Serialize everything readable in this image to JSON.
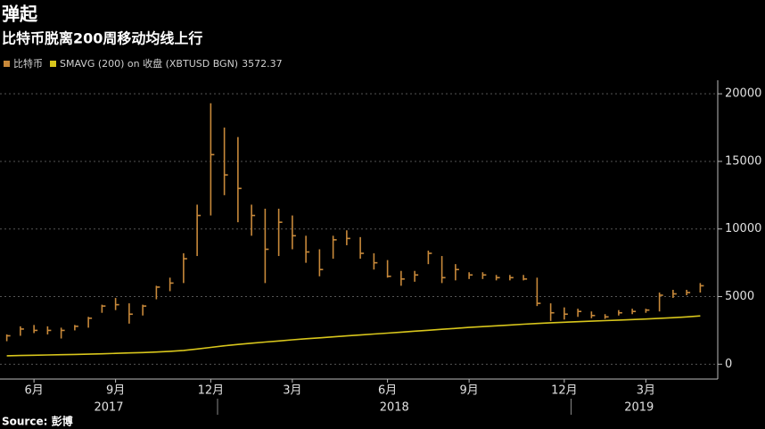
{
  "chart_data": {
    "type": "ohlc",
    "title": "弹起",
    "subtitle": "比特币脱离200周移动均线上行",
    "source": "Source: 彭博",
    "categories": [
      null,
      null,
      "6月",
      null,
      null,
      null,
      null,
      null,
      "9月",
      null,
      null,
      null,
      null,
      null,
      null,
      "12月",
      null,
      null,
      null,
      null,
      null,
      "3月",
      null,
      null,
      null,
      null,
      null,
      null,
      "6月",
      null,
      null,
      null,
      null,
      null,
      "9月",
      null,
      null,
      null,
      null,
      null,
      null,
      "12月",
      null,
      null,
      null,
      null,
      null,
      "3月",
      null,
      null,
      null,
      null
    ],
    "x_groups": [
      {
        "label": "2017",
        "start": 0,
        "end": 15
      },
      {
        "label": "2018",
        "start": 16,
        "end": 41
      },
      {
        "label": "2019",
        "start": 42,
        "end": 51
      }
    ],
    "ylim": [
      -1100,
      21000
    ],
    "yticks": [
      0,
      5000,
      10000,
      15000,
      20000
    ],
    "grid": true,
    "series": [
      {
        "name": "比特币",
        "type": "ohlc",
        "color": "#c8893a",
        "high": [
          2200,
          2800,
          2900,
          2800,
          2700,
          2900,
          3500,
          4400,
          4900,
          4500,
          4400,
          5800,
          6400,
          8200,
          11800,
          19300,
          17500,
          16800,
          11800,
          11500,
          11500,
          11000,
          9500,
          8500,
          9500,
          9900,
          9400,
          8200,
          7700,
          6900,
          6900,
          8400,
          8000,
          7400,
          6800,
          6800,
          6600,
          6600,
          6600,
          6400,
          4500,
          4200,
          4100,
          3900,
          3700,
          4000,
          4100,
          4100,
          5300,
          5500,
          5500,
          6000
        ],
        "low": [
          1700,
          2100,
          2300,
          2200,
          1900,
          2500,
          2700,
          3800,
          4000,
          3000,
          3600,
          4800,
          5400,
          6000,
          8000,
          11000,
          12500,
          10500,
          9500,
          6000,
          8000,
          8500,
          7500,
          6500,
          7800,
          8800,
          7800,
          7000,
          6400,
          5800,
          6100,
          7400,
          6000,
          6200,
          6300,
          6300,
          6200,
          6200,
          6200,
          4300,
          3200,
          3300,
          3500,
          3400,
          3350,
          3600,
          3700,
          3800,
          3900,
          4900,
          5100,
          5300
        ],
        "close": [
          2100,
          2600,
          2500,
          2500,
          2500,
          2800,
          3400,
          4300,
          4400,
          3700,
          4300,
          5700,
          6000,
          7800,
          11000,
          15500,
          14000,
          13000,
          11000,
          8500,
          10500,
          9500,
          8300,
          7000,
          9200,
          9300,
          8200,
          7500,
          6500,
          6300,
          6600,
          8200,
          6400,
          7000,
          6600,
          6600,
          6400,
          6400,
          6300,
          4500,
          3800,
          3700,
          3900,
          3600,
          3500,
          3800,
          3900,
          4000,
          5100,
          5200,
          5300,
          5800
        ]
      },
      {
        "name": "SMAVG (200) on 收盘 (XBTUSD BGN)",
        "type": "line",
        "color": "#d8c61c",
        "values": [
          620,
          640,
          660,
          680,
          700,
          720,
          740,
          770,
          800,
          830,
          860,
          900,
          950,
          1020,
          1120,
          1240,
          1360,
          1460,
          1550,
          1640,
          1720,
          1800,
          1880,
          1950,
          2020,
          2090,
          2160,
          2230,
          2300,
          2370,
          2440,
          2510,
          2580,
          2650,
          2720,
          2780,
          2840,
          2900,
          2960,
          3010,
          3060,
          3100,
          3140,
          3180,
          3220,
          3260,
          3300,
          3340,
          3390,
          3440,
          3500,
          3572.37
        ]
      }
    ]
  }
}
